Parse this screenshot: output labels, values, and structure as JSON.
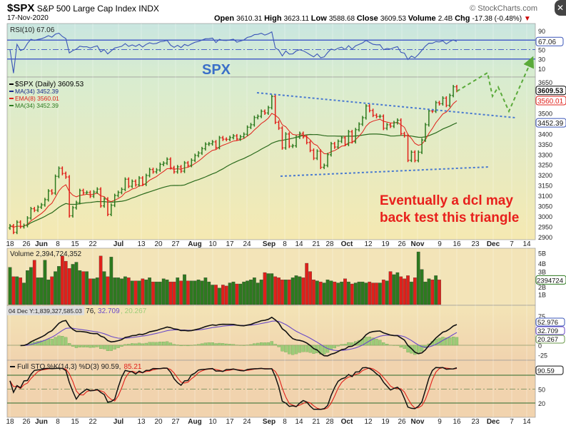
{
  "header": {
    "symbol": "$SPX",
    "name": "S&P 500 Large Cap Index",
    "exchange": "INDX",
    "date": "17-Nov-2020",
    "brand": "© StockCharts.com",
    "ohlc": [
      {
        "label": "Open",
        "value": "3610.31"
      },
      {
        "label": "High",
        "value": "3623.11"
      },
      {
        "label": "Low",
        "value": "3588.68"
      },
      {
        "label": "Close",
        "value": "3609.53"
      },
      {
        "label": "Volume",
        "value": "2.4B"
      },
      {
        "label": "Chg",
        "value": "-17.38 (-0.48%)"
      }
    ],
    "down_arrow": "▼"
  },
  "annotations": {
    "spx_label": "SPX",
    "note_line1": "Eventually a dcl may",
    "note_line2": "back test this triangle"
  },
  "colors": {
    "up": "#2d7a1f",
    "down": "#e0201a",
    "blue": "#3a5fcd",
    "annotation": "#e8201c",
    "dashed_arrow": "#5aaa3a"
  },
  "chart_data": {
    "type": "ohlc",
    "title": "$SPX S&P 500 Large Cap Index INDX",
    "x_ticks": [
      "18",
      "26",
      "Jun",
      "8",
      "15",
      "22",
      "Jul",
      "13",
      "20",
      "27",
      "Aug",
      "10",
      "17",
      "24",
      "Sep",
      "8",
      "14",
      "21",
      "28",
      "Oct",
      "12",
      "19",
      "26",
      "Nov",
      "9",
      "16",
      "23",
      "Dec",
      "7",
      "14"
    ],
    "bold_ticks": [
      "Jun",
      "Jul",
      "Aug",
      "Sep",
      "Oct",
      "Nov",
      "Dec"
    ],
    "closes": [
      2953,
      2922,
      2971,
      2949,
      2955,
      2991,
      3036,
      3029,
      3044,
      3055,
      3080,
      3122,
      3112,
      3193,
      3232,
      3207,
      3190,
      3002,
      3041,
      3066,
      3124,
      3113,
      3115,
      3097,
      3117,
      3131,
      3050,
      3083,
      3009,
      3053,
      3100,
      3115,
      3130,
      3179,
      3145,
      3169,
      3152,
      3185,
      3155,
      3197,
      3226,
      3215,
      3224,
      3251,
      3257,
      3276,
      3235,
      3215,
      3239,
      3218,
      3258,
      3246,
      3271,
      3294,
      3306,
      3327,
      3349,
      3351,
      3360,
      3333,
      3380,
      3373,
      3372,
      3381,
      3389,
      3374,
      3385,
      3397,
      3431,
      3443,
      3478,
      3484,
      3508,
      3500,
      3526,
      3580,
      3455,
      3427,
      3331,
      3398,
      3339,
      3341,
      3383,
      3401,
      3385,
      3357,
      3319,
      3281,
      3315,
      3237,
      3246,
      3298,
      3351,
      3335,
      3363,
      3380,
      3348,
      3409,
      3361,
      3419,
      3446,
      3477,
      3534,
      3512,
      3489,
      3483,
      3484,
      3426,
      3443,
      3436,
      3453,
      3465,
      3400,
      3390,
      3271,
      3310,
      3270,
      3310,
      3369,
      3443,
      3510,
      3509,
      3550,
      3545,
      3572,
      3537,
      3585,
      3627,
      3609.53
    ],
    "volumes_billions": [
      3.6,
      2.7,
      2.7,
      2.6,
      2.1,
      3.3,
      3.6,
      4.3,
      2.6,
      2.6,
      4.3,
      2.4,
      2.7,
      3.2,
      3.7,
      4.7,
      4.2,
      3.5,
      3.9,
      4.1,
      3.3,
      3.2,
      3.2,
      2.5,
      2.5,
      2.6,
      4.7,
      3.2,
      2.7,
      4.6,
      2.6,
      2.6,
      2.5,
      2.7,
      2.6,
      2.3,
      2.3,
      2.3,
      2.5,
      2.4,
      2.6,
      2.2,
      2.2,
      2.2,
      2.5,
      2.4,
      2.2,
      2.2,
      2.6,
      2.3,
      2.9,
      2.3,
      2.3,
      2.3,
      2.4,
      2.3,
      2.6,
      2.2,
      1.9,
      1.9,
      1.6,
      1.9,
      1.8,
      2.1,
      2.2,
      2.0,
      2.0,
      2.2,
      2.3,
      2.4,
      2.6,
      2.1,
      2.4,
      3.1,
      3.0,
      3.0,
      2.7,
      2.6,
      2.4,
      2.4,
      2.4,
      2.6,
      2.8,
      2.7,
      2.6,
      4.0,
      3.2,
      2.4,
      2.3,
      2.2,
      2.1,
      2.4,
      2.3,
      2.2,
      2.1,
      2.2,
      2.5,
      2.2,
      2.0,
      2.1,
      2.2,
      2.2,
      2.1,
      2.2,
      2.1,
      2.1,
      2.1,
      2.4,
      2.3,
      3.2,
      2.9,
      3.1,
      2.7,
      2.5,
      2.8,
      2.2,
      2.6,
      5.1,
      3.4,
      2.2,
      2.5,
      2.4,
      2.8,
      2.39
    ],
    "price_axis": {
      "ylim": [
        2900,
        3650
      ],
      "ticks": [
        "3650",
        "3500",
        "3400",
        "3350",
        "3300",
        "3250",
        "3200",
        "3150",
        "3100",
        "3050",
        "3000",
        "2950",
        "2900"
      ]
    },
    "rsi": {
      "legend": "RSI(10) 67.06",
      "value_label": "67.06",
      "ticks": [
        "90",
        "50",
        "30",
        "10"
      ],
      "levels": [
        70,
        50,
        30
      ]
    },
    "price_legend": [
      {
        "text": "$SPX (Daily) 3609.53",
        "color": "#000"
      },
      {
        "text": "MA(34) 3452.39",
        "color": "#1a2a8a"
      },
      {
        "text": "EMA(8) 3560.01",
        "color": "#e0201a"
      },
      {
        "text": "MA(34) 3452.39",
        "color": "#2d7a1f"
      }
    ],
    "price_value_labels": [
      "3609.53",
      "3560.01",
      "3452.39"
    ],
    "volume": {
      "legend": "Volume 2,394,724,352",
      "value_label": "2394724",
      "ticks": [
        "5B",
        "4B",
        "3B",
        "2B",
        "1B"
      ]
    },
    "macd": {
      "tooltip": "04 Dec Y:1,839,327,585.03",
      "legend_tail": "76, ",
      "signal": "32.709",
      "hist": ", 20.267",
      "value_labels": [
        "52.976",
        "32.709",
        "20.267"
      ],
      "ticks": [
        "75",
        "50",
        "25",
        "0",
        "-25"
      ]
    },
    "sto": {
      "legend": "Full STO %K(14,3) %D(3) 90.59, ",
      "d_value": "85.21",
      "value_label": "90.59",
      "ticks": [
        "50",
        "20"
      ],
      "levels": [
        80,
        50,
        20
      ]
    }
  }
}
